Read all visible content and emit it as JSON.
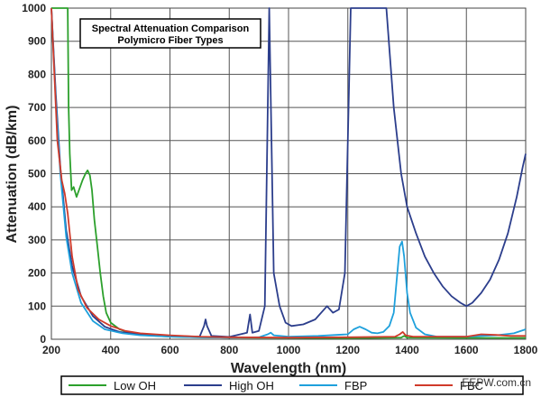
{
  "chart_data": {
    "type": "line",
    "title": "Spectral Attenuation Comparison",
    "subtitle": "Polymicro Fiber Types",
    "xlabel": "Wavelength (nm)",
    "ylabel": "Attenuation (dB/km)",
    "xlim": [
      200,
      1800
    ],
    "ylim": [
      0,
      1000
    ],
    "xticks": [
      "200",
      "400",
      "600",
      "800",
      "1000",
      "1200",
      "1400",
      "1600",
      "1800"
    ],
    "yticks": [
      "0",
      "100",
      "200",
      "300",
      "400",
      "500",
      "600",
      "700",
      "800",
      "900",
      "1000"
    ],
    "grid": true,
    "legend_position": "bottom",
    "series": [
      {
        "name": "Low OH",
        "color": "#2ca02c",
        "points": [
          [
            200,
            1000
          ],
          [
            255,
            1000
          ],
          [
            258,
            700
          ],
          [
            262,
            560
          ],
          [
            268,
            450
          ],
          [
            275,
            460
          ],
          [
            285,
            430
          ],
          [
            295,
            455
          ],
          [
            305,
            480
          ],
          [
            315,
            500
          ],
          [
            322,
            510
          ],
          [
            330,
            495
          ],
          [
            337,
            450
          ],
          [
            345,
            360
          ],
          [
            355,
            280
          ],
          [
            365,
            200
          ],
          [
            375,
            130
          ],
          [
            385,
            80
          ],
          [
            400,
            50
          ],
          [
            430,
            30
          ],
          [
            470,
            18
          ],
          [
            520,
            12
          ],
          [
            600,
            8
          ],
          [
            700,
            6
          ],
          [
            800,
            5
          ],
          [
            1000,
            4
          ],
          [
            1200,
            3
          ],
          [
            1380,
            5
          ],
          [
            1390,
            10
          ],
          [
            1400,
            5
          ],
          [
            1600,
            4
          ],
          [
            1800,
            4
          ]
        ]
      },
      {
        "name": "High OH",
        "color": "#2c3e8c",
        "points": [
          [
            200,
            1000
          ],
          [
            215,
            740
          ],
          [
            230,
            520
          ],
          [
            250,
            330
          ],
          [
            270,
            220
          ],
          [
            300,
            130
          ],
          [
            340,
            70
          ],
          [
            380,
            38
          ],
          [
            430,
            22
          ],
          [
            500,
            15
          ],
          [
            600,
            10
          ],
          [
            700,
            8
          ],
          [
            715,
            40
          ],
          [
            720,
            60
          ],
          [
            725,
            40
          ],
          [
            740,
            10
          ],
          [
            800,
            7
          ],
          [
            860,
            20
          ],
          [
            870,
            75
          ],
          [
            878,
            20
          ],
          [
            900,
            25
          ],
          [
            920,
            100
          ],
          [
            935,
            1000
          ],
          [
            950,
            200
          ],
          [
            970,
            100
          ],
          [
            990,
            50
          ],
          [
            1010,
            40
          ],
          [
            1050,
            45
          ],
          [
            1090,
            60
          ],
          [
            1130,
            100
          ],
          [
            1150,
            80
          ],
          [
            1170,
            90
          ],
          [
            1190,
            200
          ],
          [
            1210,
            1000
          ],
          [
            1250,
            1000
          ],
          [
            1280,
            1000
          ],
          [
            1300,
            1000
          ],
          [
            1330,
            1000
          ],
          [
            1355,
            700
          ],
          [
            1380,
            500
          ],
          [
            1400,
            400
          ],
          [
            1430,
            320
          ],
          [
            1460,
            250
          ],
          [
            1490,
            200
          ],
          [
            1520,
            160
          ],
          [
            1550,
            130
          ],
          [
            1580,
            110
          ],
          [
            1600,
            100
          ],
          [
            1620,
            110
          ],
          [
            1650,
            140
          ],
          [
            1680,
            180
          ],
          [
            1710,
            240
          ],
          [
            1740,
            320
          ],
          [
            1770,
            430
          ],
          [
            1790,
            520
          ],
          [
            1800,
            560
          ]
        ]
      },
      {
        "name": "FBP",
        "color": "#1ea0dc",
        "points": [
          [
            200,
            1000
          ],
          [
            215,
            720
          ],
          [
            230,
            500
          ],
          [
            250,
            310
          ],
          [
            270,
            200
          ],
          [
            300,
            110
          ],
          [
            340,
            55
          ],
          [
            380,
            30
          ],
          [
            440,
            18
          ],
          [
            500,
            12
          ],
          [
            600,
            8
          ],
          [
            700,
            6
          ],
          [
            800,
            5
          ],
          [
            900,
            6
          ],
          [
            930,
            15
          ],
          [
            940,
            20
          ],
          [
            950,
            12
          ],
          [
            1000,
            8
          ],
          [
            1100,
            10
          ],
          [
            1200,
            15
          ],
          [
            1220,
            30
          ],
          [
            1240,
            38
          ],
          [
            1260,
            30
          ],
          [
            1280,
            20
          ],
          [
            1300,
            18
          ],
          [
            1320,
            22
          ],
          [
            1340,
            40
          ],
          [
            1355,
            80
          ],
          [
            1365,
            180
          ],
          [
            1375,
            280
          ],
          [
            1383,
            295
          ],
          [
            1390,
            250
          ],
          [
            1400,
            140
          ],
          [
            1410,
            80
          ],
          [
            1430,
            35
          ],
          [
            1460,
            15
          ],
          [
            1500,
            8
          ],
          [
            1600,
            8
          ],
          [
            1700,
            12
          ],
          [
            1760,
            18
          ],
          [
            1800,
            30
          ]
        ]
      },
      {
        "name": "FBC",
        "color": "#d03a2a",
        "points": [
          [
            200,
            1000
          ],
          [
            210,
            800
          ],
          [
            220,
            600
          ],
          [
            235,
            480
          ],
          [
            245,
            440
          ],
          [
            255,
            380
          ],
          [
            270,
            250
          ],
          [
            290,
            150
          ],
          [
            320,
            95
          ],
          [
            360,
            60
          ],
          [
            400,
            40
          ],
          [
            450,
            25
          ],
          [
            500,
            18
          ],
          [
            600,
            12
          ],
          [
            700,
            8
          ],
          [
            800,
            6
          ],
          [
            1000,
            5
          ],
          [
            1200,
            6
          ],
          [
            1360,
            8
          ],
          [
            1375,
            15
          ],
          [
            1385,
            22
          ],
          [
            1395,
            12
          ],
          [
            1420,
            8
          ],
          [
            1600,
            8
          ],
          [
            1650,
            15
          ],
          [
            1700,
            13
          ],
          [
            1750,
            10
          ],
          [
            1800,
            10
          ]
        ]
      }
    ]
  },
  "watermark": "EEPW.com.cn"
}
